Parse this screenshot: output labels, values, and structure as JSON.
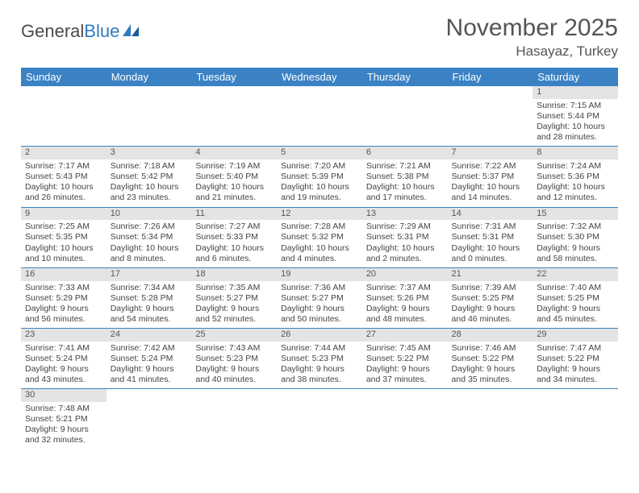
{
  "brand": {
    "part1": "General",
    "part2": "Blue"
  },
  "title": "November 2025",
  "location": "Hasayaz, Turkey",
  "colors": {
    "header_bg": "#3b82c4",
    "header_fg": "#ffffff",
    "daynum_bg": "#e4e4e4",
    "rule": "#3b82c4",
    "text": "#444444"
  },
  "weekdays": [
    "Sunday",
    "Monday",
    "Tuesday",
    "Wednesday",
    "Thursday",
    "Friday",
    "Saturday"
  ],
  "first_weekday_index": 6,
  "days": [
    {
      "n": 1,
      "sunrise": "7:15 AM",
      "sunset": "5:44 PM",
      "daylight": "10 hours and 28 minutes."
    },
    {
      "n": 2,
      "sunrise": "7:17 AM",
      "sunset": "5:43 PM",
      "daylight": "10 hours and 26 minutes."
    },
    {
      "n": 3,
      "sunrise": "7:18 AM",
      "sunset": "5:42 PM",
      "daylight": "10 hours and 23 minutes."
    },
    {
      "n": 4,
      "sunrise": "7:19 AM",
      "sunset": "5:40 PM",
      "daylight": "10 hours and 21 minutes."
    },
    {
      "n": 5,
      "sunrise": "7:20 AM",
      "sunset": "5:39 PM",
      "daylight": "10 hours and 19 minutes."
    },
    {
      "n": 6,
      "sunrise": "7:21 AM",
      "sunset": "5:38 PM",
      "daylight": "10 hours and 17 minutes."
    },
    {
      "n": 7,
      "sunrise": "7:22 AM",
      "sunset": "5:37 PM",
      "daylight": "10 hours and 14 minutes."
    },
    {
      "n": 8,
      "sunrise": "7:24 AM",
      "sunset": "5:36 PM",
      "daylight": "10 hours and 12 minutes."
    },
    {
      "n": 9,
      "sunrise": "7:25 AM",
      "sunset": "5:35 PM",
      "daylight": "10 hours and 10 minutes."
    },
    {
      "n": 10,
      "sunrise": "7:26 AM",
      "sunset": "5:34 PM",
      "daylight": "10 hours and 8 minutes."
    },
    {
      "n": 11,
      "sunrise": "7:27 AM",
      "sunset": "5:33 PM",
      "daylight": "10 hours and 6 minutes."
    },
    {
      "n": 12,
      "sunrise": "7:28 AM",
      "sunset": "5:32 PM",
      "daylight": "10 hours and 4 minutes."
    },
    {
      "n": 13,
      "sunrise": "7:29 AM",
      "sunset": "5:31 PM",
      "daylight": "10 hours and 2 minutes."
    },
    {
      "n": 14,
      "sunrise": "7:31 AM",
      "sunset": "5:31 PM",
      "daylight": "10 hours and 0 minutes."
    },
    {
      "n": 15,
      "sunrise": "7:32 AM",
      "sunset": "5:30 PM",
      "daylight": "9 hours and 58 minutes."
    },
    {
      "n": 16,
      "sunrise": "7:33 AM",
      "sunset": "5:29 PM",
      "daylight": "9 hours and 56 minutes."
    },
    {
      "n": 17,
      "sunrise": "7:34 AM",
      "sunset": "5:28 PM",
      "daylight": "9 hours and 54 minutes."
    },
    {
      "n": 18,
      "sunrise": "7:35 AM",
      "sunset": "5:27 PM",
      "daylight": "9 hours and 52 minutes."
    },
    {
      "n": 19,
      "sunrise": "7:36 AM",
      "sunset": "5:27 PM",
      "daylight": "9 hours and 50 minutes."
    },
    {
      "n": 20,
      "sunrise": "7:37 AM",
      "sunset": "5:26 PM",
      "daylight": "9 hours and 48 minutes."
    },
    {
      "n": 21,
      "sunrise": "7:39 AM",
      "sunset": "5:25 PM",
      "daylight": "9 hours and 46 minutes."
    },
    {
      "n": 22,
      "sunrise": "7:40 AM",
      "sunset": "5:25 PM",
      "daylight": "9 hours and 45 minutes."
    },
    {
      "n": 23,
      "sunrise": "7:41 AM",
      "sunset": "5:24 PM",
      "daylight": "9 hours and 43 minutes."
    },
    {
      "n": 24,
      "sunrise": "7:42 AM",
      "sunset": "5:24 PM",
      "daylight": "9 hours and 41 minutes."
    },
    {
      "n": 25,
      "sunrise": "7:43 AM",
      "sunset": "5:23 PM",
      "daylight": "9 hours and 40 minutes."
    },
    {
      "n": 26,
      "sunrise": "7:44 AM",
      "sunset": "5:23 PM",
      "daylight": "9 hours and 38 minutes."
    },
    {
      "n": 27,
      "sunrise": "7:45 AM",
      "sunset": "5:22 PM",
      "daylight": "9 hours and 37 minutes."
    },
    {
      "n": 28,
      "sunrise": "7:46 AM",
      "sunset": "5:22 PM",
      "daylight": "9 hours and 35 minutes."
    },
    {
      "n": 29,
      "sunrise": "7:47 AM",
      "sunset": "5:22 PM",
      "daylight": "9 hours and 34 minutes."
    },
    {
      "n": 30,
      "sunrise": "7:48 AM",
      "sunset": "5:21 PM",
      "daylight": "9 hours and 32 minutes."
    }
  ],
  "labels": {
    "sunrise": "Sunrise: ",
    "sunset": "Sunset: ",
    "daylight": "Daylight: "
  }
}
